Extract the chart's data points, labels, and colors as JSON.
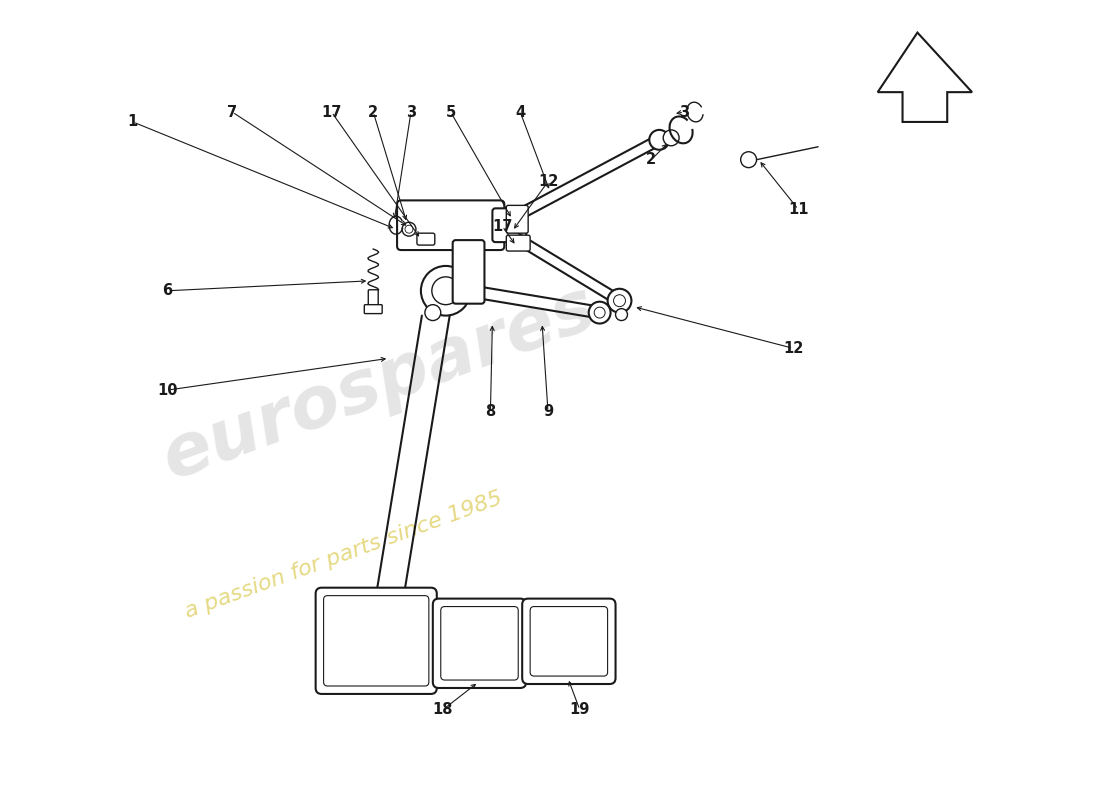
{
  "bg_color": "#ffffff",
  "line_color": "#1a1a1a",
  "label_color": "#111111",
  "figsize": [
    11.0,
    8.0
  ],
  "dpi": 100
}
